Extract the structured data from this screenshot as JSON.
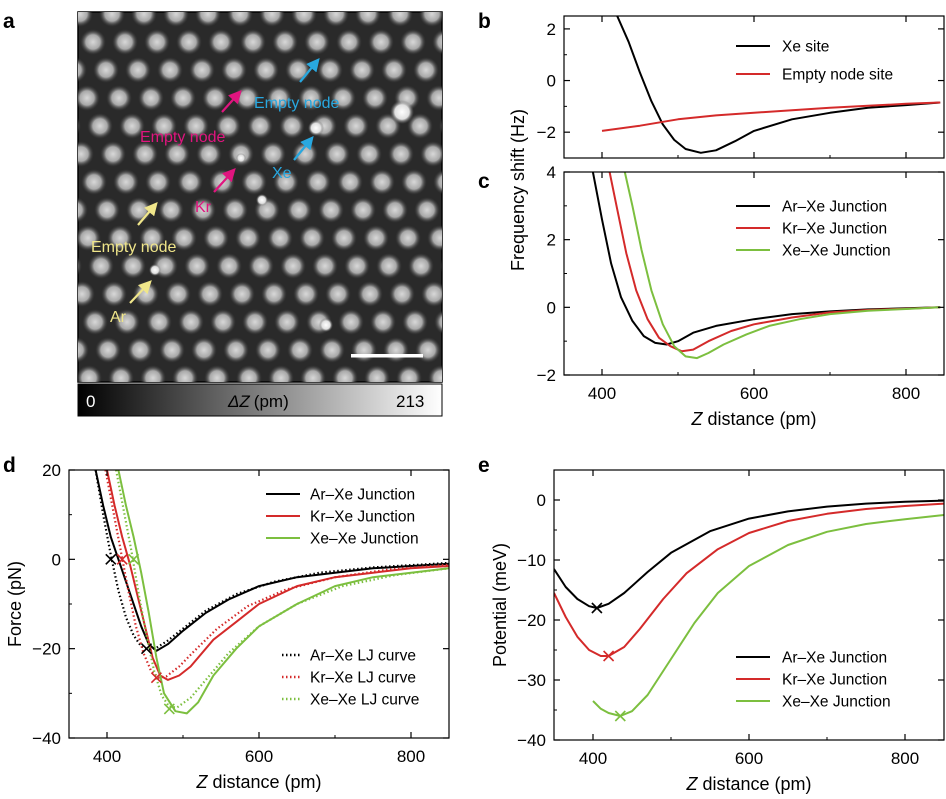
{
  "panels": {
    "a": {
      "label": "a",
      "colorbar": {
        "min_label": "0",
        "max_label": "213",
        "quantity": "ΔZ",
        "unit": "(pm)"
      },
      "annotations": [
        {
          "text": "Empty node",
          "color": "#28a8e0"
        },
        {
          "text": "Xe",
          "color": "#28a8e0"
        },
        {
          "text": "Empty node",
          "color": "#e0157f"
        },
        {
          "text": "Kr",
          "color": "#e0157f"
        },
        {
          "text": "Empty node",
          "color": "#f0e68a"
        },
        {
          "text": "Ar",
          "color": "#f0e68a"
        }
      ]
    },
    "b": {
      "label": "b"
    },
    "c": {
      "label": "c"
    },
    "d": {
      "label": "d"
    },
    "e": {
      "label": "e"
    }
  },
  "colors": {
    "black": "#000000",
    "red": "#d42a2a",
    "green": "#7cbf3f",
    "cyan": "#28a8e0",
    "magenta": "#e0157f",
    "yellow": "#f0e68a"
  },
  "chart_data": [
    {
      "id": "b",
      "type": "line",
      "xlabel": "",
      "ylabel": "Frequency shift (Hz)",
      "xlim": [
        350,
        850
      ],
      "ylim": [
        -3,
        2.5
      ],
      "yticks": [
        "2",
        "0",
        "-2"
      ],
      "yticks_values": [
        2,
        0,
        -2
      ],
      "xticks_values": [
        400,
        600,
        800
      ],
      "legend_position": "top-right",
      "series": [
        {
          "name": "Xe site",
          "color": "black",
          "x": [
            420,
            435,
            450,
            465,
            480,
            495,
            510,
            530,
            550,
            575,
            600,
            650,
            700,
            750,
            800,
            845
          ],
          "y": [
            2.5,
            1.5,
            0.3,
            -0.8,
            -1.7,
            -2.3,
            -2.65,
            -2.8,
            -2.7,
            -2.35,
            -1.95,
            -1.5,
            -1.25,
            -1.05,
            -0.95,
            -0.85
          ]
        },
        {
          "name": "Empty node site",
          "color": "red",
          "x": [
            400,
            450,
            500,
            550,
            600,
            650,
            700,
            750,
            800,
            845
          ],
          "y": [
            -1.95,
            -1.75,
            -1.5,
            -1.35,
            -1.25,
            -1.15,
            -1.05,
            -0.98,
            -0.9,
            -0.85
          ]
        }
      ]
    },
    {
      "id": "c",
      "type": "line",
      "xlabel": "Z distance (pm)",
      "ylabel": "",
      "xlim": [
        350,
        850
      ],
      "ylim": [
        -2,
        4
      ],
      "xticks": [
        "400",
        "600",
        "800"
      ],
      "xticks_values": [
        400,
        600,
        800
      ],
      "yticks": [
        "4",
        "2",
        "0",
        "-2"
      ],
      "yticks_values": [
        4,
        2,
        0,
        -2
      ],
      "legend_position": "top-right",
      "series": [
        {
          "name": "Ar–Xe Junction",
          "color": "black",
          "x": [
            388,
            400,
            412,
            425,
            440,
            455,
            470,
            485,
            500,
            520,
            550,
            600,
            650,
            700,
            750,
            800,
            845
          ],
          "y": [
            4,
            2.6,
            1.3,
            0.3,
            -0.4,
            -0.85,
            -1.05,
            -1.1,
            -1.0,
            -0.75,
            -0.55,
            -0.35,
            -0.2,
            -0.12,
            -0.06,
            -0.03,
            0
          ]
        },
        {
          "name": "Kr–Xe Junction",
          "color": "red",
          "x": [
            410,
            420,
            432,
            445,
            460,
            475,
            490,
            505,
            520,
            540,
            570,
            600,
            650,
            700,
            750,
            800,
            845
          ],
          "y": [
            4,
            2.9,
            1.6,
            0.5,
            -0.35,
            -0.9,
            -1.15,
            -1.3,
            -1.25,
            -1.0,
            -0.7,
            -0.5,
            -0.3,
            -0.15,
            -0.08,
            -0.04,
            0
          ]
        },
        {
          "name": "Xe–Xe Junction",
          "color": "green",
          "x": [
            430,
            440,
            452,
            465,
            480,
            495,
            510,
            525,
            540,
            560,
            590,
            620,
            660,
            700,
            750,
            800,
            845
          ],
          "y": [
            4,
            3.0,
            1.7,
            0.5,
            -0.5,
            -1.15,
            -1.45,
            -1.5,
            -1.35,
            -1.1,
            -0.8,
            -0.55,
            -0.35,
            -0.2,
            -0.1,
            -0.05,
            0
          ]
        }
      ]
    },
    {
      "id": "d",
      "type": "line",
      "xlabel": "Z distance (pm)",
      "ylabel": "Force (pN)",
      "xlim": [
        350,
        850
      ],
      "ylim": [
        -40,
        20
      ],
      "xticks": [
        "400",
        "600",
        "800"
      ],
      "xticks_values": [
        400,
        600,
        800
      ],
      "yticks": [
        "20",
        "0",
        "-20",
        "-40"
      ],
      "yticks_values": [
        20,
        0,
        -20,
        -40
      ],
      "legend_position": "top-right",
      "series": [
        {
          "name": "Ar–Xe Junction",
          "color": "black",
          "style": "solid",
          "x": [
            385,
            395,
            405,
            415,
            425,
            435,
            445,
            455,
            465,
            480,
            500,
            530,
            560,
            600,
            650,
            700,
            750,
            800,
            850
          ],
          "y": [
            20,
            12,
            5,
            0,
            -5,
            -10,
            -15,
            -19,
            -20.5,
            -19,
            -16,
            -12,
            -9,
            -6,
            -4,
            -3,
            -2,
            -1.5,
            -1
          ]
        },
        {
          "name": "Kr–Xe Junction",
          "color": "red",
          "style": "solid",
          "x": [
            400,
            410,
            420,
            430,
            440,
            450,
            460,
            470,
            480,
            495,
            510,
            540,
            570,
            600,
            650,
            700,
            750,
            800,
            850
          ],
          "y": [
            20,
            12,
            5,
            -1,
            -8,
            -15,
            -22,
            -26,
            -27,
            -26,
            -24,
            -18,
            -14,
            -10,
            -6,
            -4,
            -3,
            -2,
            -1.5
          ]
        },
        {
          "name": "Xe–Xe Junction",
          "color": "green",
          "style": "solid",
          "x": [
            415,
            425,
            435,
            445,
            455,
            465,
            475,
            490,
            505,
            520,
            540,
            570,
            600,
            650,
            700,
            750,
            800,
            850
          ],
          "y": [
            20,
            12,
            5,
            -3,
            -12,
            -22,
            -30,
            -34,
            -34.5,
            -32,
            -26,
            -20,
            -15,
            -10,
            -6,
            -4,
            -3,
            -2
          ]
        },
        {
          "name": "Ar–Xe LJ curve",
          "color": "black",
          "style": "dotted",
          "x": [
            385,
            395,
            405,
            415,
            425,
            435,
            445,
            455,
            465,
            480,
            500,
            530,
            570,
            620,
            680,
            750,
            850
          ],
          "y": [
            20,
            10,
            1,
            -7,
            -13,
            -17,
            -19.5,
            -20.2,
            -19.8,
            -18.2,
            -15.5,
            -11.5,
            -7.8,
            -5,
            -3,
            -1.8,
            -0.8
          ]
        },
        {
          "name": "Kr–Xe LJ curve",
          "color": "red",
          "style": "dotted",
          "x": [
            398,
            408,
            418,
            428,
            438,
            448,
            458,
            468,
            478,
            495,
            515,
            545,
            585,
            635,
            700,
            770,
            850
          ],
          "y": [
            20,
            11,
            2,
            -7,
            -15,
            -21,
            -25,
            -26.5,
            -26.2,
            -24,
            -20.5,
            -15.5,
            -10.5,
            -6.8,
            -4,
            -2.3,
            -1.2
          ]
        },
        {
          "name": "Xe–Xe LJ curve",
          "color": "green",
          "style": "dotted",
          "x": [
            412,
            422,
            432,
            442,
            452,
            462,
            472,
            482,
            492,
            510,
            530,
            560,
            600,
            650,
            710,
            780,
            850
          ],
          "y": [
            20,
            11,
            2,
            -8,
            -17,
            -25,
            -30.5,
            -33,
            -33.2,
            -31,
            -27,
            -21,
            -15,
            -10,
            -6,
            -3.5,
            -2
          ]
        }
      ],
      "markers": [
        {
          "series": "Ar–Xe Junction",
          "x": 405,
          "y": 0
        },
        {
          "series": "Kr–Xe Junction",
          "x": 420,
          "y": 0
        },
        {
          "series": "Xe–Xe Junction",
          "x": 435,
          "y": 0
        },
        {
          "series": "Ar–Xe Junction",
          "x": 452,
          "y": -20
        },
        {
          "series": "Kr–Xe Junction",
          "x": 465,
          "y": -26.5
        },
        {
          "series": "Xe–Xe Junction",
          "x": 482,
          "y": -33.5
        }
      ]
    },
    {
      "id": "e",
      "type": "line",
      "xlabel": "Z distance (pm)",
      "ylabel": "Potential (meV)",
      "xlim": [
        350,
        850
      ],
      "ylim": [
        -40,
        5
      ],
      "xticks": [
        "400",
        "600",
        "800"
      ],
      "xticks_values": [
        400,
        600,
        800
      ],
      "yticks": [
        "0",
        "-10",
        "-20",
        "-30",
        "-40"
      ],
      "yticks_values": [
        0,
        -10,
        -20,
        -30,
        -40
      ],
      "legend_position": "bottom-right",
      "series": [
        {
          "name": "Ar–Xe Junction",
          "color": "black",
          "x": [
            350,
            365,
            380,
            395,
            405,
            420,
            440,
            470,
            500,
            550,
            600,
            650,
            700,
            750,
            800,
            850
          ],
          "y": [
            -11.5,
            -14.5,
            -16.5,
            -17.7,
            -18,
            -17.3,
            -15.5,
            -12,
            -8.8,
            -5.2,
            -3.1,
            -1.9,
            -1.1,
            -0.6,
            -0.3,
            -0.1
          ]
        },
        {
          "name": "Kr–Xe Junction",
          "color": "red",
          "x": [
            350,
            365,
            380,
            395,
            410,
            420,
            440,
            460,
            490,
            520,
            560,
            600,
            650,
            700,
            750,
            800,
            850
          ],
          "y": [
            -15.5,
            -19.5,
            -22.8,
            -25,
            -26,
            -26,
            -24.5,
            -21.5,
            -16.5,
            -12.2,
            -8.2,
            -5.5,
            -3.5,
            -2.3,
            -1.5,
            -1,
            -0.6
          ]
        },
        {
          "name": "Xe–Xe Junction",
          "color": "green",
          "x": [
            400,
            410,
            420,
            435,
            450,
            470,
            500,
            530,
            560,
            600,
            650,
            700,
            750,
            800,
            850
          ],
          "y": [
            -33.5,
            -34.8,
            -35.5,
            -36,
            -35.2,
            -32.5,
            -26.5,
            -20.5,
            -15.5,
            -11,
            -7.5,
            -5.3,
            -4,
            -3.2,
            -2.5
          ]
        }
      ],
      "markers": [
        {
          "series": "Ar–Xe Junction",
          "x": 405,
          "y": -18
        },
        {
          "series": "Kr–Xe Junction",
          "x": 420,
          "y": -26
        },
        {
          "series": "Xe–Xe Junction",
          "x": 435,
          "y": -36
        }
      ]
    }
  ]
}
